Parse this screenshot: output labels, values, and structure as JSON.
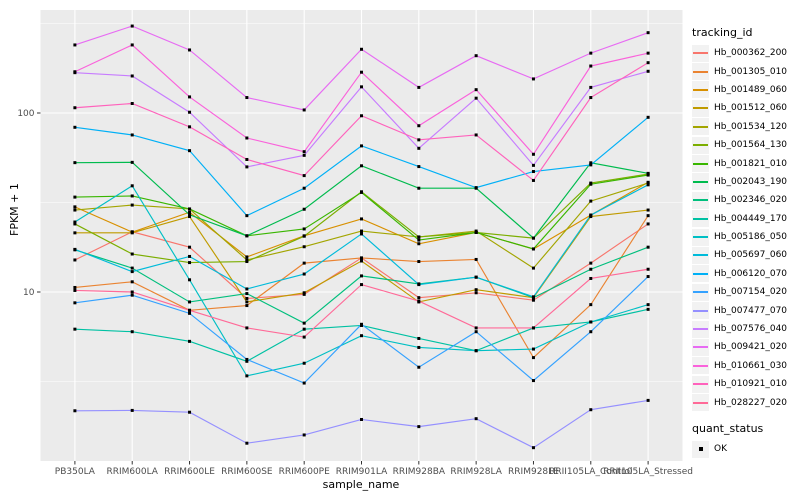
{
  "chart_data": {
    "type": "line",
    "title": "",
    "xlabel": "sample_name",
    "ylabel": "FPKM + 1",
    "yscale": "log10",
    "y_ticks": [
      10,
      100
    ],
    "y_tick_labels": [
      "10",
      "100"
    ],
    "y_minor_ticks": [
      3.1623,
      31.623,
      316.23
    ],
    "ylim": [
      1.14,
      377
    ],
    "grid": true,
    "legend_position": "right",
    "legend_title": "tracking_id",
    "quant_legend_title": "quant_status",
    "quant_status_label": "OK",
    "point_marker": "small-black-square",
    "categories": [
      "PB350LA",
      "RRIM600LA",
      "RRIM600LE",
      "RRIM600SE",
      "RRIM600PE",
      "RRIM901LA",
      "RRIM928BA",
      "RRIM928LA",
      "RRIM928LE",
      "RRII105LA_Control",
      "RRII105LA_Stressed"
    ],
    "series": [
      {
        "name": "Hb_000362_200",
        "color": "#F8766D",
        "values": [
          15.1,
          21.7,
          17.8,
          9.2,
          9.7,
          15.5,
          9.3,
          9.9,
          9.0,
          14.5,
          24.0
        ]
      },
      {
        "name": "Hb_001305_010",
        "color": "#EA8331",
        "values": [
          10.6,
          11.4,
          7.9,
          8.4,
          14.5,
          15.5,
          14.8,
          15.2,
          4.3,
          8.5,
          26.7
        ]
      },
      {
        "name": "Hb_001489_060",
        "color": "#D89000",
        "values": [
          29.9,
          21.6,
          27.9,
          15.7,
          20.6,
          25.6,
          18.6,
          21.5,
          17.4,
          26.9,
          41.0
        ]
      },
      {
        "name": "Hb_001512_060",
        "color": "#C09B00",
        "values": [
          21.4,
          21.4,
          26.4,
          8.8,
          9.9,
          14.9,
          8.8,
          10.3,
          9.3,
          26.4,
          28.7
        ]
      },
      {
        "name": "Hb_001534_120",
        "color": "#A3A500",
        "values": [
          28.7,
          30.6,
          29.1,
          15.1,
          17.9,
          21.9,
          20.3,
          21.9,
          13.6,
          32.2,
          40.6
        ]
      },
      {
        "name": "Hb_001564_130",
        "color": "#7CAE00",
        "values": [
          24.0,
          16.3,
          14.6,
          14.8,
          20.5,
          36.3,
          20.3,
          21.5,
          20.0,
          40.6,
          45.6
        ]
      },
      {
        "name": "Hb_001821_010",
        "color": "#39B600",
        "values": [
          33.9,
          34.4,
          29.1,
          20.6,
          22.5,
          36.0,
          19.5,
          21.5,
          17.4,
          40.0,
          45.0
        ]
      },
      {
        "name": "Hb_002043_190",
        "color": "#00BB4E",
        "values": [
          52.8,
          53.0,
          27.0,
          20.6,
          29.0,
          50.7,
          38.0,
          38.0,
          20.0,
          52.7,
          46.0
        ]
      },
      {
        "name": "Hb_002346_020",
        "color": "#00BF7D",
        "values": [
          17.2,
          13.6,
          8.8,
          9.8,
          6.7,
          12.3,
          11.1,
          12.1,
          9.3,
          13.4,
          17.8
        ]
      },
      {
        "name": "Hb_004449_170",
        "color": "#00C1A3",
        "values": [
          6.2,
          6.0,
          5.3,
          4.1,
          6.2,
          6.5,
          5.5,
          4.7,
          6.3,
          6.8,
          8.0
        ]
      },
      {
        "name": "Hb_005186_050",
        "color": "#00BFC4",
        "values": [
          24.6,
          39.2,
          11.7,
          3.4,
          4.0,
          5.7,
          4.9,
          4.7,
          4.8,
          6.8,
          8.5
        ]
      },
      {
        "name": "Hb_005697_060",
        "color": "#00BBDA",
        "values": [
          17.3,
          13.0,
          15.8,
          10.4,
          12.6,
          21.1,
          11.0,
          12.1,
          9.4,
          26.9,
          39.7
        ]
      },
      {
        "name": "Hb_006120_070",
        "color": "#00B0F6",
        "values": [
          83.2,
          75.4,
          61.6,
          26.7,
          38.0,
          65.5,
          50.2,
          38.3,
          47.1,
          51.3,
          94.6
        ]
      },
      {
        "name": "Hb_007154_020",
        "color": "#35A2FF",
        "values": [
          8.7,
          9.6,
          7.6,
          4.2,
          3.1,
          6.6,
          3.8,
          6.0,
          3.2,
          6.0,
          12.2
        ]
      },
      {
        "name": "Hb_007477_070",
        "color": "#9590FF",
        "values": [
          2.17,
          2.18,
          2.13,
          1.43,
          1.59,
          1.94,
          1.77,
          1.96,
          1.35,
          2.2,
          2.48
        ]
      },
      {
        "name": "Hb_007576_040",
        "color": "#C77CFF",
        "values": [
          168,
          161,
          101,
          50,
          58,
          140,
          63.5,
          121,
          51,
          139,
          171
        ]
      },
      {
        "name": "Hb_009421_020",
        "color": "#E76BF3",
        "values": [
          240,
          306,
          225,
          122,
          104,
          227,
          139,
          209,
          155,
          216,
          281
        ]
      },
      {
        "name": "Hb_010661_030",
        "color": "#FA62DB",
        "values": [
          170,
          240,
          123,
          72.5,
          60.8,
          169,
          84.9,
          135,
          58.8,
          183,
          216
        ]
      },
      {
        "name": "Hb_010921_010",
        "color": "#FF62BC",
        "values": [
          107,
          113,
          83.7,
          55,
          44.7,
          96.5,
          70.8,
          75.4,
          42,
          122,
          191
        ]
      },
      {
        "name": "Hb_028227_020",
        "color": "#FF6A98",
        "values": [
          10.2,
          10.0,
          7.9,
          6.3,
          5.6,
          11.0,
          8.9,
          6.3,
          6.3,
          11.9,
          13.4
        ]
      }
    ],
    "colors": {
      "panel_background": "#EBEBEB",
      "grid_major": "#FFFFFF",
      "grid_minor": "#FFFFFF",
      "tick_text": "#4D4D4D",
      "point": "#000000",
      "legend_key_background": "#F2F2F2"
    }
  }
}
